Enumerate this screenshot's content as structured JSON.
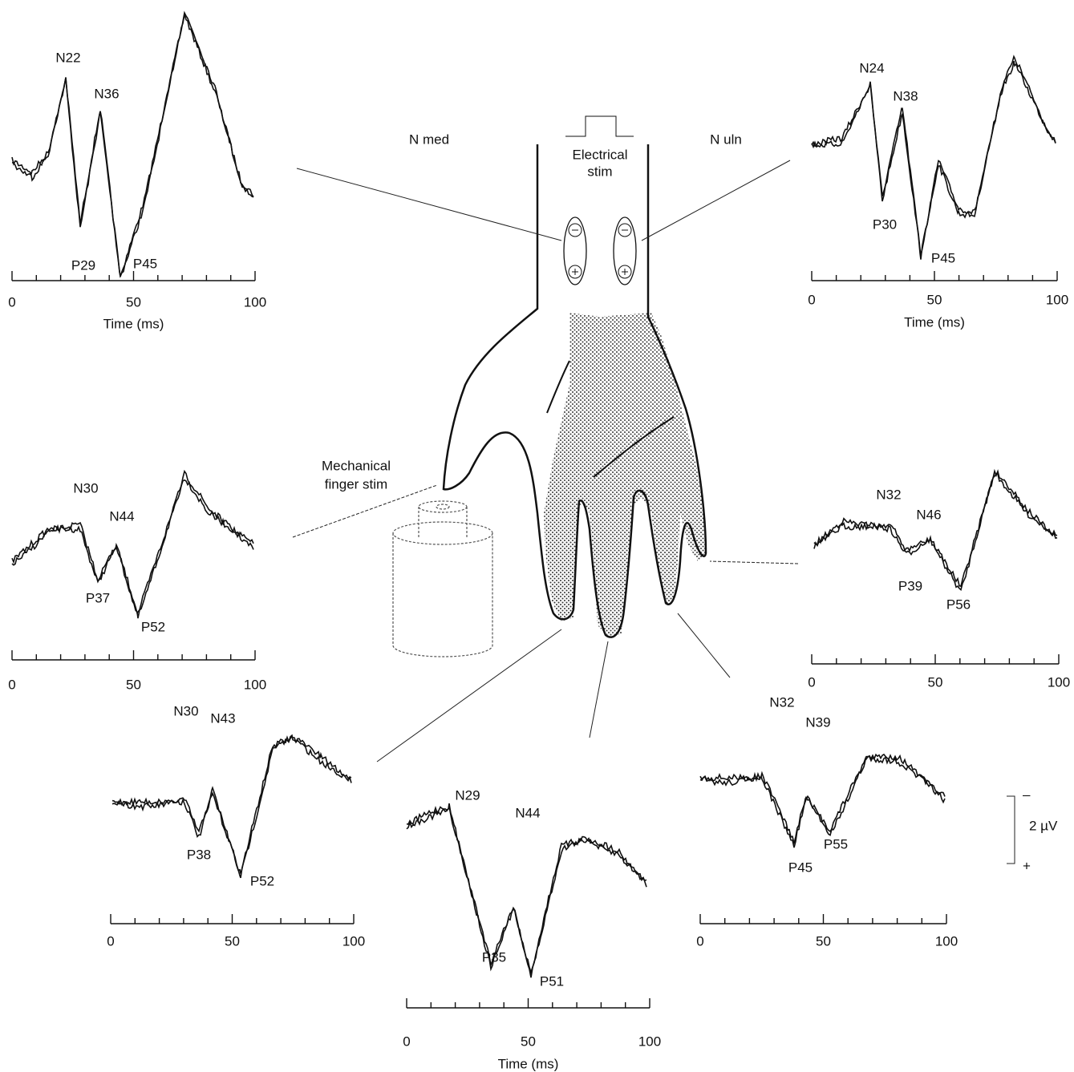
{
  "labels": {
    "n_med": "N med",
    "n_uln": "N uln",
    "electrical_stim": [
      "Electrical",
      "stim"
    ],
    "mechanical_stim": [
      "Mechanical",
      "finger stim"
    ]
  },
  "scale_bar": {
    "minus": "–",
    "value": "2 µV",
    "plus": "+"
  },
  "panels": [
    {
      "peaks": [
        "N22",
        "N36",
        "P29",
        "P45"
      ],
      "ticks": [
        "0",
        "50",
        "100"
      ],
      "axis_label": "Time (ms)"
    },
    {
      "peaks": [
        "N24",
        "N38",
        "P30",
        "P45"
      ],
      "ticks": [
        "0",
        "50",
        "100"
      ],
      "axis_label": "Time (ms)"
    },
    {
      "peaks": [
        "N30",
        "N44",
        "P37",
        "P52"
      ],
      "ticks": [
        "0",
        "50",
        "100"
      ]
    },
    {
      "peaks": [
        "N32",
        "N46",
        "P39",
        "P56"
      ],
      "ticks": [
        "0",
        "50",
        "100"
      ]
    },
    {
      "peaks": [
        "N30",
        "N43",
        "P38",
        "P52"
      ],
      "ticks": [
        "0",
        "50",
        "100"
      ]
    },
    {
      "peaks": [
        "N29",
        "N44",
        "P35",
        "P51"
      ],
      "ticks": [
        "0",
        "50",
        "100"
      ],
      "axis_label": "Time (ms)"
    },
    {
      "peaks": [
        "N32",
        "N39",
        "P45",
        "P55"
      ],
      "ticks": [
        "0",
        "50",
        "100"
      ]
    }
  ]
}
